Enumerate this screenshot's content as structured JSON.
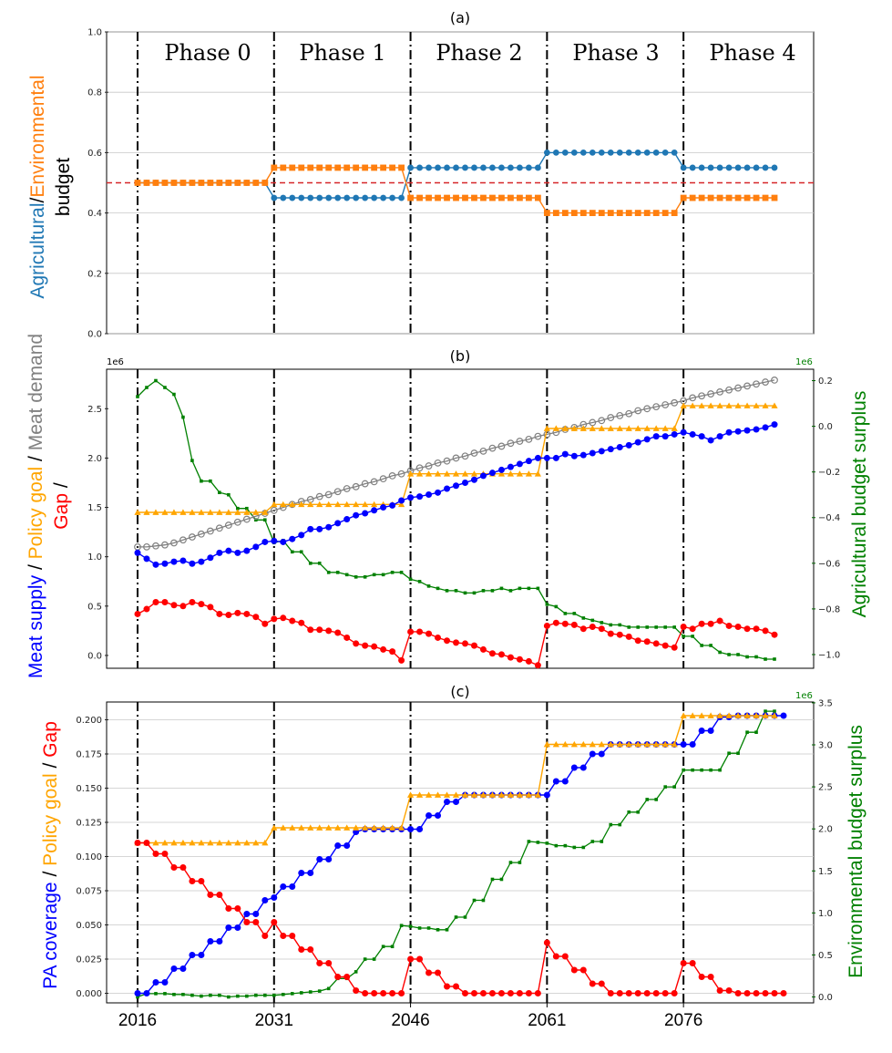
{
  "colors": {
    "agri": "#1f77b4",
    "env": "#ff7f0e",
    "red_line": "#d62728",
    "supply": "#0000ff",
    "policy": "#ffa500",
    "demand": "#808080",
    "gap": "#ff0000",
    "surplus": "#008000",
    "grid": "#c8c8c8"
  },
  "x_tick_years": [
    "2016",
    "2031",
    "2046",
    "2061",
    "2076"
  ],
  "phase_labels": [
    "Phase 0",
    "Phase 1",
    "Phase 2",
    "Phase 3",
    "Phase 4"
  ],
  "chart_data": [
    {
      "type": "line",
      "panel": "a",
      "title": "(a)",
      "ylabel_parts": [
        "Agricultural",
        "/",
        "Environmental",
        "budget"
      ],
      "ylim": [
        0,
        1.0
      ],
      "yticks": [
        "0.0",
        "0.2",
        "0.4",
        "0.6",
        "0.8",
        "1.0"
      ],
      "reference_line": 0.5,
      "x_start": 2016,
      "series": [
        {
          "name": "Agricultural",
          "segments": [
            [
              0,
              15,
              0.5
            ],
            [
              15,
              30,
              0.45
            ],
            [
              30,
              45,
              0.55
            ],
            [
              45,
              60,
              0.6
            ],
            [
              60,
              72,
              0.55
            ]
          ]
        },
        {
          "name": "Environmental",
          "segments": [
            [
              0,
              15,
              0.5
            ],
            [
              15,
              30,
              0.55
            ],
            [
              30,
              45,
              0.45
            ],
            [
              45,
              60,
              0.4
            ],
            [
              60,
              72,
              0.45
            ]
          ]
        }
      ]
    },
    {
      "type": "line",
      "panel": "b",
      "title": "(b)",
      "ylabel_parts": [
        "Meat supply",
        " / ",
        "Policy goal",
        " / ",
        "Meat demand",
        "Gap",
        " / "
      ],
      "y2label": "Agricultural budget surplus",
      "ylim": [
        -0.13,
        2.9
      ],
      "yticks": [
        "0.0",
        "0.5",
        "1.0",
        "1.5",
        "2.0",
        "2.5"
      ],
      "y_multiplier": "1e6",
      "y2lim": [
        -1.06,
        0.25
      ],
      "y2ticks": [
        "−1.0",
        "−0.8",
        "−0.6",
        "−0.4",
        "−0.2",
        "0.0",
        "0.2"
      ],
      "y2_multiplier": "1e6",
      "x_start": 2016,
      "series": [
        {
          "name": "Meat supply",
          "values": [
            1.04,
            0.98,
            0.92,
            0.93,
            0.95,
            0.96,
            0.93,
            0.95,
            0.99,
            1.04,
            1.06,
            1.04,
            1.06,
            1.1,
            1.15,
            1.16,
            1.15,
            1.18,
            1.22,
            1.28,
            1.28,
            1.3,
            1.34,
            1.38,
            1.42,
            1.44,
            1.47,
            1.5,
            1.52,
            1.57,
            1.6,
            1.61,
            1.63,
            1.65,
            1.69,
            1.72,
            1.75,
            1.78,
            1.82,
            1.85,
            1.88,
            1.91,
            1.94,
            1.97,
            2.0,
            2.0,
            2.0,
            2.04,
            2.02,
            2.03,
            2.05,
            2.07,
            2.09,
            2.11,
            2.13,
            2.16,
            2.19,
            2.22,
            2.22,
            2.24,
            2.26,
            2.24,
            2.22,
            2.18,
            2.22,
            2.26,
            2.27,
            2.28,
            2.29,
            2.31,
            2.34
          ]
        },
        {
          "name": "Policy goal",
          "segments": [
            [
              0,
              15,
              1.45
            ],
            [
              15,
              30,
              1.53
            ],
            [
              30,
              45,
              1.84
            ],
            [
              45,
              60,
              2.3
            ],
            [
              60,
              72,
              2.53
            ]
          ]
        },
        {
          "name": "Meat demand",
          "values": [
            1.1,
            1.1,
            1.11,
            1.12,
            1.14,
            1.17,
            1.2,
            1.23,
            1.26,
            1.29,
            1.32,
            1.35,
            1.38,
            1.41,
            1.44,
            1.47,
            1.5,
            1.53,
            1.56,
            1.58,
            1.61,
            1.63,
            1.66,
            1.69,
            1.71,
            1.74,
            1.76,
            1.79,
            1.82,
            1.84,
            1.87,
            1.9,
            1.92,
            1.95,
            1.97,
            2.0,
            2.02,
            2.05,
            2.07,
            2.1,
            2.12,
            2.15,
            2.17,
            2.19,
            2.22,
            2.24,
            2.26,
            2.29,
            2.31,
            2.34,
            2.36,
            2.38,
            2.41,
            2.43,
            2.45,
            2.48,
            2.5,
            2.52,
            2.54,
            2.56,
            2.58,
            2.61,
            2.63,
            2.65,
            2.67,
            2.69,
            2.71,
            2.73,
            2.75,
            2.77,
            2.79
          ]
        },
        {
          "name": "Gap",
          "values": [
            0.42,
            0.47,
            0.54,
            0.54,
            0.51,
            0.5,
            0.54,
            0.52,
            0.49,
            0.42,
            0.41,
            0.43,
            0.42,
            0.39,
            0.32,
            0.37,
            0.38,
            0.35,
            0.33,
            0.26,
            0.26,
            0.25,
            0.23,
            0.18,
            0.12,
            0.1,
            0.09,
            0.06,
            0.04,
            -0.05,
            0.24,
            0.24,
            0.22,
            0.18,
            0.15,
            0.13,
            0.12,
            0.1,
            0.06,
            0.02,
            0.01,
            -0.02,
            -0.04,
            -0.06,
            -0.1,
            0.3,
            0.33,
            0.32,
            0.31,
            0.27,
            0.29,
            0.27,
            0.22,
            0.21,
            0.19,
            0.15,
            0.14,
            0.12,
            0.1,
            0.08,
            0.29,
            0.27,
            0.32,
            0.32,
            0.35,
            0.3,
            0.29,
            0.27,
            0.27,
            0.25,
            0.21
          ]
        },
        {
          "name": "Agricultural budget surplus",
          "values": [
            0.13,
            0.17,
            0.2,
            0.17,
            0.14,
            0.04,
            -0.15,
            -0.24,
            -0.24,
            -0.29,
            -0.3,
            -0.36,
            -0.36,
            -0.41,
            -0.41,
            -0.51,
            -0.5,
            -0.55,
            -0.55,
            -0.6,
            -0.6,
            -0.64,
            -0.64,
            -0.65,
            -0.66,
            -0.66,
            -0.65,
            -0.65,
            -0.64,
            -0.64,
            -0.67,
            -0.68,
            -0.7,
            -0.71,
            -0.72,
            -0.72,
            -0.73,
            -0.73,
            -0.72,
            -0.72,
            -0.71,
            -0.72,
            -0.71,
            -0.71,
            -0.71,
            -0.78,
            -0.79,
            -0.82,
            -0.82,
            -0.84,
            -0.85,
            -0.86,
            -0.87,
            -0.87,
            -0.88,
            -0.88,
            -0.88,
            -0.88,
            -0.88,
            -0.88,
            -0.92,
            -0.92,
            -0.96,
            -0.96,
            -0.99,
            -1.0,
            -1.0,
            -1.01,
            -1.01,
            -1.02,
            -1.02
          ]
        }
      ]
    },
    {
      "type": "line",
      "panel": "c",
      "title": "(c)",
      "ylabel_parts": [
        "PA coverage",
        " / ",
        "Policy goal",
        " / ",
        "Gap"
      ],
      "y2label": "Environmental budget surplus",
      "ylim": [
        -0.007,
        0.213
      ],
      "yticks": [
        "0.000",
        "0.025",
        "0.050",
        "0.075",
        "0.100",
        "0.125",
        "0.150",
        "0.175",
        "0.200"
      ],
      "y2lim": [
        -0.07,
        3.51
      ],
      "y2ticks": [
        "0.0",
        "0.5",
        "1.0",
        "1.5",
        "2.0",
        "2.5",
        "3.0",
        "3.5"
      ],
      "y2_multiplier": "1e6",
      "x_start": 2016,
      "series": [
        {
          "name": "PA coverage",
          "values": [
            0.0,
            0.0,
            0.008,
            0.008,
            0.018,
            0.018,
            0.028,
            0.028,
            0.038,
            0.038,
            0.048,
            0.048,
            0.058,
            0.058,
            0.068,
            0.07,
            0.078,
            0.078,
            0.088,
            0.088,
            0.098,
            0.098,
            0.108,
            0.108,
            0.118,
            0.12,
            0.12,
            0.12,
            0.12,
            0.12,
            0.12,
            0.12,
            0.13,
            0.13,
            0.14,
            0.14,
            0.145,
            0.145,
            0.145,
            0.145,
            0.145,
            0.145,
            0.145,
            0.145,
            0.145,
            0.145,
            0.155,
            0.155,
            0.165,
            0.165,
            0.175,
            0.175,
            0.182,
            0.182,
            0.182,
            0.182,
            0.182,
            0.182,
            0.182,
            0.182,
            0.182,
            0.182,
            0.192,
            0.192,
            0.202,
            0.202,
            0.203,
            0.203,
            0.203,
            0.203,
            0.203,
            0.203
          ]
        },
        {
          "name": "Policy goal",
          "segments": [
            [
              0,
              15,
              0.11
            ],
            [
              15,
              30,
              0.121
            ],
            [
              30,
              45,
              0.145
            ],
            [
              45,
              60,
              0.182
            ],
            [
              60,
              72,
              0.203
            ]
          ]
        },
        {
          "name": "Gap",
          "values": [
            0.11,
            0.11,
            0.102,
            0.102,
            0.092,
            0.092,
            0.082,
            0.082,
            0.072,
            0.072,
            0.062,
            0.062,
            0.052,
            0.052,
            0.042,
            0.052,
            0.042,
            0.042,
            0.032,
            0.032,
            0.022,
            0.022,
            0.012,
            0.012,
            0.002,
            0.0,
            0.0,
            0.0,
            0.0,
            0.0,
            0.025,
            0.025,
            0.015,
            0.015,
            0.005,
            0.005,
            0.0,
            0.0,
            0.0,
            0.0,
            0.0,
            0.0,
            0.0,
            0.0,
            0.0,
            0.037,
            0.027,
            0.027,
            0.017,
            0.017,
            0.007,
            0.007,
            0.0,
            0.0,
            0.0,
            0.0,
            0.0,
            0.0,
            0.0,
            0.0,
            0.022,
            0.022,
            0.012,
            0.012,
            0.002,
            0.002,
            0.0,
            0.0,
            0.0,
            0.0,
            0.0,
            0.0
          ]
        },
        {
          "name": "Environmental budget surplus",
          "values": [
            0.0,
            0.04,
            0.04,
            0.04,
            0.03,
            0.03,
            0.02,
            0.01,
            0.02,
            0.02,
            0.0,
            0.01,
            0.01,
            0.02,
            0.02,
            0.02,
            0.03,
            0.04,
            0.05,
            0.06,
            0.07,
            0.1,
            0.22,
            0.22,
            0.3,
            0.45,
            0.45,
            0.6,
            0.6,
            0.85,
            0.84,
            0.82,
            0.82,
            0.8,
            0.8,
            0.95,
            0.95,
            1.15,
            1.15,
            1.4,
            1.4,
            1.6,
            1.6,
            1.85,
            1.84,
            1.83,
            1.8,
            1.8,
            1.78,
            1.78,
            1.85,
            1.85,
            2.05,
            2.05,
            2.2,
            2.2,
            2.35,
            2.35,
            2.5,
            2.5,
            2.7,
            2.7,
            2.7,
            2.7,
            2.7,
            2.9,
            2.9,
            3.15,
            3.15,
            3.4,
            3.4
          ]
        }
      ]
    }
  ]
}
